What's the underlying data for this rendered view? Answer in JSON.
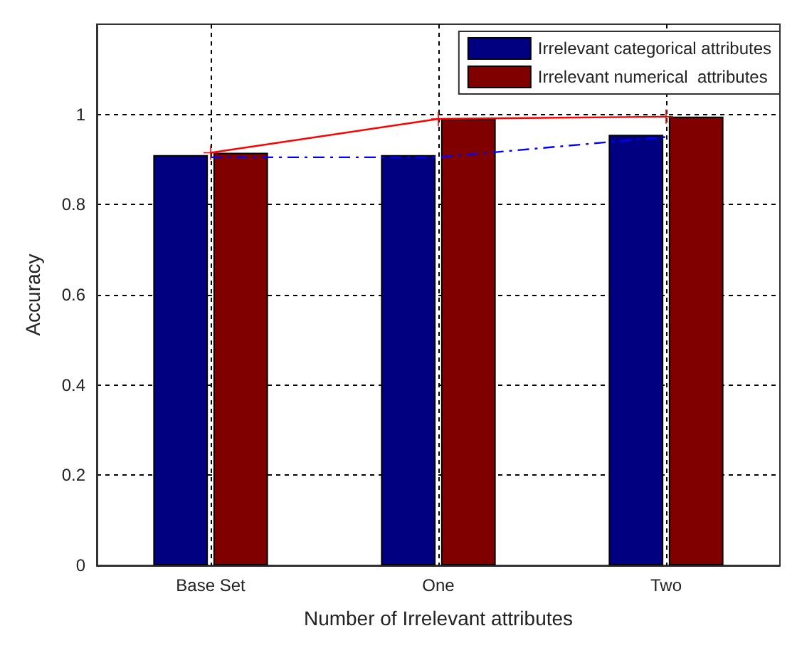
{
  "chart_data": {
    "type": "bar",
    "xlabel": "Number of Irrelevant attributes",
    "ylabel": "Accuracy",
    "categories": [
      "Base Set",
      "One",
      "Two"
    ],
    "series": [
      {
        "name": "Irrelevant categorical attributes",
        "color": "#000080",
        "values": [
          0.91,
          0.91,
          0.955
        ]
      },
      {
        "name": "Irrelevant numerical  attributes",
        "color": "#800000",
        "values": [
          0.915,
          0.99,
          0.995
        ]
      },
      {
        "type": "line",
        "color": "#ff0000",
        "values": [
          0.915,
          0.99,
          0.995
        ],
        "marker": "cross",
        "line_style": "solid"
      },
      {
        "type": "line",
        "color": "#0000ff",
        "values": [
          0.905,
          0.905,
          0.95
        ],
        "marker": "none",
        "line_style": "dashed"
      }
    ],
    "ylim": [
      0,
      1.2
    ],
    "yticks": [
      0,
      0.2,
      0.4,
      0.6,
      0.8,
      1
    ],
    "grid": true,
    "legend": "top right"
  }
}
